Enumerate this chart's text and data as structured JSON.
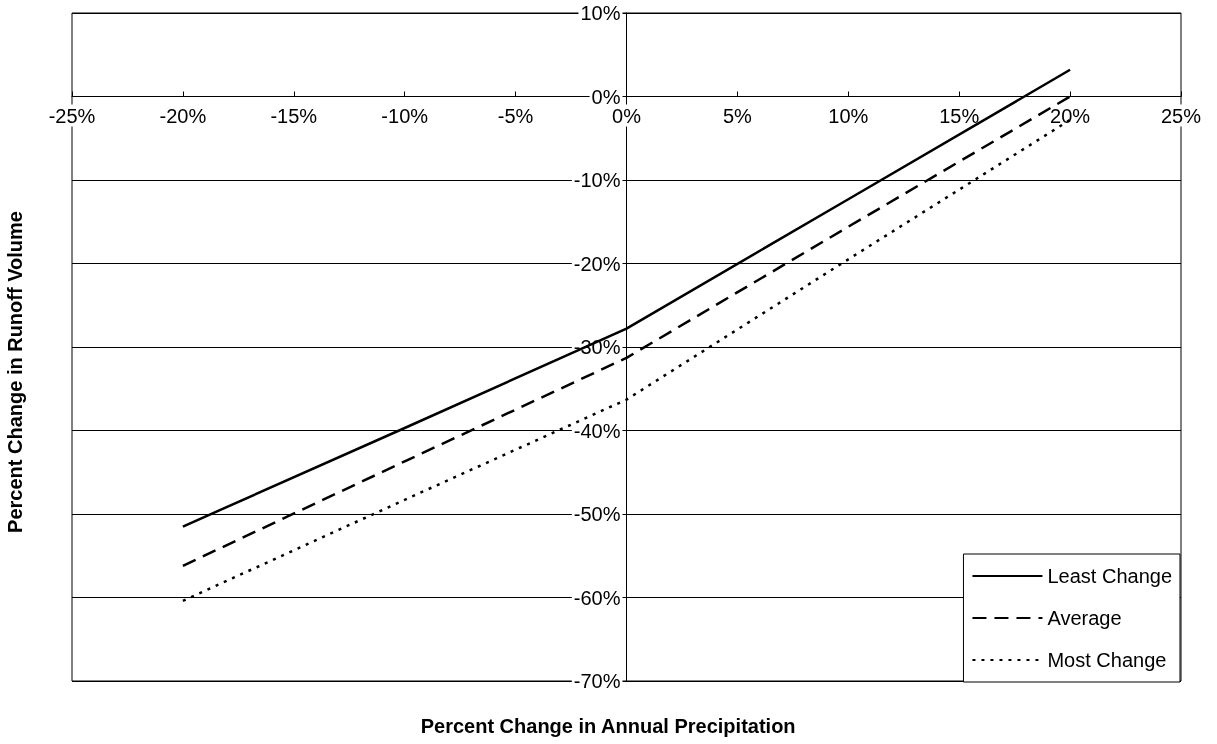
{
  "chart_data": {
    "type": "line",
    "xlabel": "Percent Change in Annual Precipitation",
    "ylabel": "Percent Change in Runoff Volume",
    "x": [
      -20,
      -10,
      0,
      10,
      20
    ],
    "series": [
      {
        "name": "Least Change",
        "color": "#000000",
        "line_style": "solid",
        "values": [
          -51.5,
          -39.7,
          -27.8,
          -12.3,
          3.2
        ]
      },
      {
        "name": "Average",
        "color": "#000000",
        "line_style": "dashed",
        "values": [
          -56.2,
          -43.7,
          -31.3,
          -15.6,
          0
        ]
      },
      {
        "name": "Most Change",
        "color": "#000000",
        "line_style": "dotted",
        "values": [
          -60.4,
          -48.3,
          -36.3,
          -19.5,
          -2.8
        ]
      }
    ],
    "xlim": [
      -25,
      25
    ],
    "xticks": [
      {
        "value": -25,
        "label": "-25%"
      },
      {
        "value": -20,
        "label": "-20%"
      },
      {
        "value": -15,
        "label": "-15%"
      },
      {
        "value": -10,
        "label": "-10%"
      },
      {
        "value": -5,
        "label": "-5%"
      },
      {
        "value": 0,
        "label": "0%"
      },
      {
        "value": 5,
        "label": "5%"
      },
      {
        "value": 10,
        "label": "10%"
      },
      {
        "value": 15,
        "label": "15%"
      },
      {
        "value": 20,
        "label": "20%"
      },
      {
        "value": 25,
        "label": "25%"
      }
    ],
    "ylim": [
      -70,
      10
    ],
    "yticks": [
      {
        "value": -70,
        "label": "-70%"
      },
      {
        "value": -60,
        "label": "-60%"
      },
      {
        "value": -50,
        "label": "-50%"
      },
      {
        "value": -40,
        "label": "-40%"
      },
      {
        "value": -30,
        "label": "-30%"
      },
      {
        "value": -20,
        "label": "-20%"
      },
      {
        "value": -10,
        "label": "-10%"
      },
      {
        "value": 0,
        "label": "0%"
      },
      {
        "value": 10,
        "label": "10%"
      }
    ],
    "grid": "y",
    "legend": "bottom right",
    "marker": "none"
  }
}
